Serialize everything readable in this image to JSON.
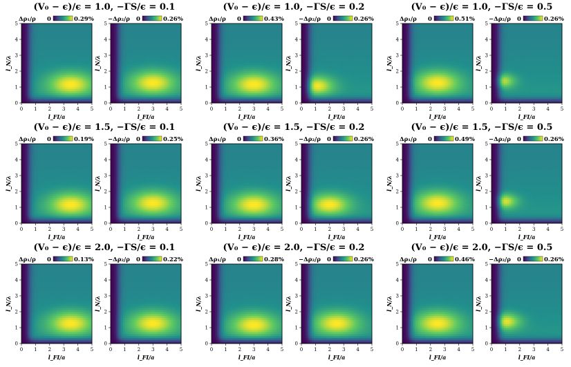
{
  "figure": {
    "colormap": [
      "#440154",
      "#3b528b",
      "#21918c",
      "#5ec962",
      "#fde725"
    ],
    "row_titles": [
      [
        "(V₀ − ϵ)/ϵ = 1.0,  −ΓS/ϵ = 0.1",
        "(V₀ − ϵ)/ϵ = 1.0,  −ΓS/ϵ = 0.2",
        "(V₀ − ϵ)/ϵ = 1.0,  −ΓS/ϵ = 0.5"
      ],
      [
        "(V₀ − ϵ)/ϵ = 1.5,  −ΓS/ϵ = 0.1",
        "(V₀ − ϵ)/ϵ = 1.5,  −ΓS/ϵ = 0.2",
        "(V₀ − ϵ)/ϵ = 1.5,  −ΓS/ϵ = 0.5"
      ],
      [
        "(V₀ − ϵ)/ϵ = 2.0,  −ΓS/ϵ = 0.1",
        "(V₀ − ϵ)/ϵ = 2.0,  −ΓS/ϵ = 0.2",
        "(V₀ − ϵ)/ϵ = 2.0,  −ΓS/ϵ = 0.5"
      ]
    ]
  },
  "chart_data": [
    {
      "type": "heatmap",
      "cb_label": "Δρ₁/ρ",
      "cb_min": "0",
      "cb_max": "0.29%",
      "xlabel": "l_FI/a",
      "ylabel": "l_N/λ",
      "xlim": [
        0,
        5
      ],
      "ylim": [
        0,
        5
      ],
      "ticks": [
        "0",
        "1",
        "2",
        "3",
        "4",
        "5"
      ],
      "peak_x": 3.5,
      "peak_y": 1.2,
      "spread": 1.0
    },
    {
      "type": "heatmap",
      "cb_label": "−Δρ₂/ρ",
      "cb_min": "0",
      "cb_max": "0.26%",
      "xlabel": "l_FI/a",
      "ylabel": "l_N/λ",
      "xlim": [
        0,
        5
      ],
      "ylim": [
        0,
        5
      ],
      "ticks": [
        "0",
        "1",
        "2",
        "3",
        "4",
        "5"
      ],
      "peak_x": 3.0,
      "peak_y": 1.3,
      "spread": 1.0
    },
    {
      "type": "heatmap",
      "cb_label": "Δρ₁/ρ",
      "cb_min": "0",
      "cb_max": "0.43%",
      "xlabel": "l_FI/a",
      "ylabel": "l_N/λ",
      "xlim": [
        0,
        5
      ],
      "ylim": [
        0,
        5
      ],
      "ticks": [
        "0",
        "1",
        "2",
        "3",
        "4",
        "5"
      ],
      "peak_x": 3.0,
      "peak_y": 1.2,
      "spread": 1.0
    },
    {
      "type": "heatmap",
      "cb_label": "−Δρ₂/ρ",
      "cb_min": "0",
      "cb_max": "0.26%",
      "xlabel": "l_FI/a",
      "ylabel": "l_N/λ",
      "xlim": [
        0,
        5
      ],
      "ylim": [
        0,
        5
      ],
      "ticks": [
        "0",
        "1",
        "2",
        "3",
        "4",
        "5"
      ],
      "peak_x": 1.0,
      "peak_y": 1.1,
      "spread": 0.8
    },
    {
      "type": "heatmap",
      "cb_label": "Δρ₁/ρ",
      "cb_min": "0",
      "cb_max": "0.51%",
      "xlabel": "l_FI/a",
      "ylabel": "l_N/λ",
      "xlim": [
        0,
        5
      ],
      "ylim": [
        0,
        5
      ],
      "ticks": [
        "0",
        "1",
        "2",
        "3",
        "4",
        "5"
      ],
      "peak_x": 2.5,
      "peak_y": 1.3,
      "spread": 1.0
    },
    {
      "type": "heatmap",
      "cb_label": "−Δρ₂/ρ",
      "cb_min": "0",
      "cb_max": "0.26%",
      "xlabel": "l_FI/a",
      "ylabel": "l_N/λ",
      "xlim": [
        0,
        5
      ],
      "ylim": [
        0,
        5
      ],
      "ticks": [
        "0",
        "1",
        "2",
        "3",
        "4",
        "5"
      ],
      "peak_x": 0.6,
      "peak_y": 1.4,
      "spread": 0.6
    },
    {
      "type": "heatmap",
      "cb_label": "Δρ₁/ρ",
      "cb_min": "0",
      "cb_max": "0.19%",
      "xlabel": "l_FI/a",
      "ylabel": "l_N/λ",
      "xlim": [
        0,
        5
      ],
      "ylim": [
        0,
        5
      ],
      "ticks": [
        "0",
        "1",
        "2",
        "3",
        "4",
        "5"
      ],
      "peak_x": 3.5,
      "peak_y": 1.2,
      "spread": 1.0
    },
    {
      "type": "heatmap",
      "cb_label": "−Δρ₂/ρ",
      "cb_min": "0",
      "cb_max": "0.25%",
      "xlabel": "l_FI/a",
      "ylabel": "l_N/λ",
      "xlim": [
        0,
        5
      ],
      "ylim": [
        0,
        5
      ],
      "ticks": [
        "0",
        "1",
        "2",
        "3",
        "4",
        "5"
      ],
      "peak_x": 3.0,
      "peak_y": 1.3,
      "spread": 1.0
    },
    {
      "type": "heatmap",
      "cb_label": "Δρ₁/ρ",
      "cb_min": "0",
      "cb_max": "0.36%",
      "xlabel": "l_FI/a",
      "ylabel": "l_N/λ",
      "xlim": [
        0,
        5
      ],
      "ylim": [
        0,
        5
      ],
      "ticks": [
        "0",
        "1",
        "2",
        "3",
        "4",
        "5"
      ],
      "peak_x": 3.0,
      "peak_y": 1.2,
      "spread": 1.0
    },
    {
      "type": "heatmap",
      "cb_label": "−Δρ₂/ρ",
      "cb_min": "0",
      "cb_max": "0.26%",
      "xlabel": "l_FI/a",
      "ylabel": "l_N/λ",
      "xlim": [
        0,
        5
      ],
      "ylim": [
        0,
        5
      ],
      "ticks": [
        "0",
        "1",
        "2",
        "3",
        "4",
        "5"
      ],
      "peak_x": 2.0,
      "peak_y": 1.2,
      "spread": 0.9
    },
    {
      "type": "heatmap",
      "cb_label": "Δρ₁/ρ",
      "cb_min": "0",
      "cb_max": "0.49%",
      "xlabel": "l_FI/a",
      "ylabel": "l_N/λ",
      "xlim": [
        0,
        5
      ],
      "ylim": [
        0,
        5
      ],
      "ticks": [
        "0",
        "1",
        "2",
        "3",
        "4",
        "5"
      ],
      "peak_x": 2.5,
      "peak_y": 1.3,
      "spread": 1.0
    },
    {
      "type": "heatmap",
      "cb_label": "−Δρ₂/ρ",
      "cb_min": "0",
      "cb_max": "0.26%",
      "xlabel": "l_FI/a",
      "ylabel": "l_N/λ",
      "xlim": [
        0,
        5
      ],
      "ylim": [
        0,
        5
      ],
      "ticks": [
        "0",
        "1",
        "2",
        "3",
        "4",
        "5"
      ],
      "peak_x": 0.8,
      "peak_y": 1.4,
      "spread": 0.6
    },
    {
      "type": "heatmap",
      "cb_label": "Δρ₁/ρ",
      "cb_min": "0",
      "cb_max": "0.13%",
      "xlabel": "l_FI/a",
      "ylabel": "l_N/λ",
      "xlim": [
        0,
        5
      ],
      "ylim": [
        0,
        5
      ],
      "ticks": [
        "0",
        "1",
        "2",
        "3",
        "4",
        "5"
      ],
      "peak_x": 3.5,
      "peak_y": 1.3,
      "spread": 1.0
    },
    {
      "type": "heatmap",
      "cb_label": "−Δρ₂/ρ",
      "cb_min": "0",
      "cb_max": "0.22%",
      "xlabel": "l_FI/a",
      "ylabel": "l_N/λ",
      "xlim": [
        0,
        5
      ],
      "ylim": [
        0,
        5
      ],
      "ticks": [
        "0",
        "1",
        "2",
        "3",
        "4",
        "5"
      ],
      "peak_x": 3.0,
      "peak_y": 1.3,
      "spread": 1.0
    },
    {
      "type": "heatmap",
      "cb_label": "Δρ₁/ρ",
      "cb_min": "0",
      "cb_max": "0.28%",
      "xlabel": "l_FI/a",
      "ylabel": "l_N/λ",
      "xlim": [
        0,
        5
      ],
      "ylim": [
        0,
        5
      ],
      "ticks": [
        "0",
        "1",
        "2",
        "3",
        "4",
        "5"
      ],
      "peak_x": 3.0,
      "peak_y": 1.2,
      "spread": 1.0
    },
    {
      "type": "heatmap",
      "cb_label": "−Δρ₂/ρ",
      "cb_min": "0",
      "cb_max": "0.26%",
      "xlabel": "l_FI/a",
      "ylabel": "l_N/λ",
      "xlim": [
        0,
        5
      ],
      "ylim": [
        0,
        5
      ],
      "ticks": [
        "0",
        "1",
        "2",
        "3",
        "4",
        "5"
      ],
      "peak_x": 2.5,
      "peak_y": 1.3,
      "spread": 1.0
    },
    {
      "type": "heatmap",
      "cb_label": "Δρ₁/ρ",
      "cb_min": "0",
      "cb_max": "0.46%",
      "xlabel": "l_FI/a",
      "ylabel": "l_N/λ",
      "xlim": [
        0,
        5
      ],
      "ylim": [
        0,
        5
      ],
      "ticks": [
        "0",
        "1",
        "2",
        "3",
        "4",
        "5"
      ],
      "peak_x": 2.5,
      "peak_y": 1.3,
      "spread": 1.0
    },
    {
      "type": "heatmap",
      "cb_label": "−Δρ₂/ρ",
      "cb_min": "0",
      "cb_max": "0.26%",
      "xlabel": "l_FI/a",
      "ylabel": "l_N/λ",
      "xlim": [
        0,
        5
      ],
      "ylim": [
        0,
        5
      ],
      "ticks": [
        "0",
        "1",
        "2",
        "3",
        "4",
        "5"
      ],
      "peak_x": 0.9,
      "peak_y": 1.4,
      "spread": 0.7
    }
  ]
}
